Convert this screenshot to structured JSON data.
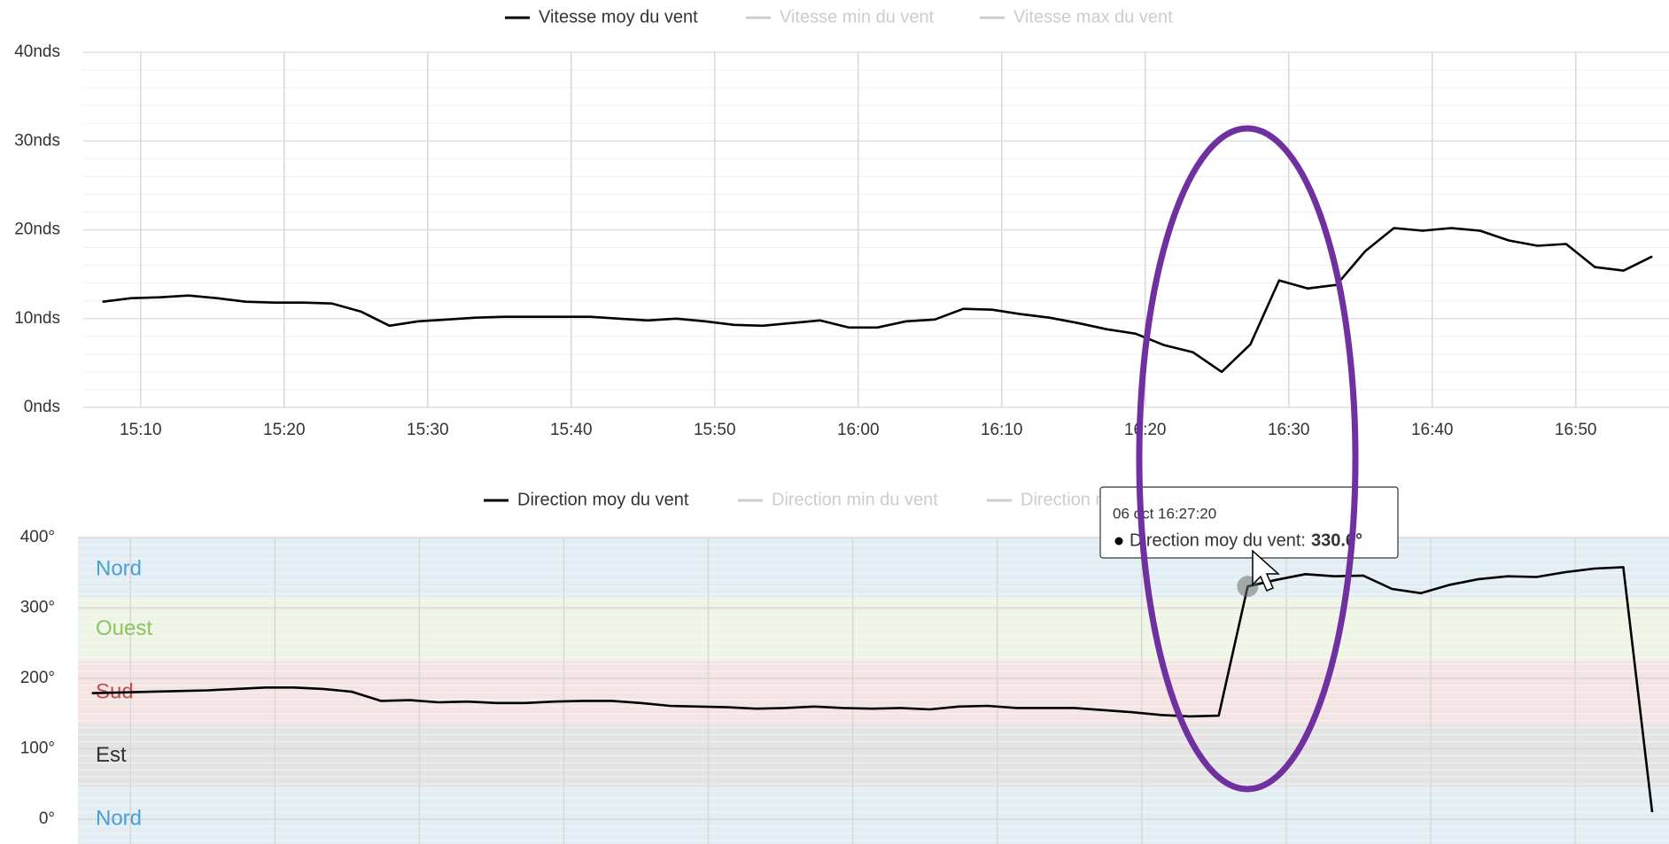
{
  "chart_data": [
    {
      "type": "line",
      "x": [
        "15:07:20",
        "15:09:20",
        "15:11:20",
        "15:13:20",
        "15:15:20",
        "15:17:20",
        "15:19:20",
        "15:21:20",
        "15:23:20",
        "15:25:20",
        "15:27:20",
        "15:29:20",
        "15:31:20",
        "15:33:20",
        "15:35:20",
        "15:37:20",
        "15:39:20",
        "15:41:20",
        "15:43:20",
        "15:45:20",
        "15:47:20",
        "15:49:20",
        "15:51:20",
        "15:53:20",
        "15:55:20",
        "15:57:20",
        "15:59:20",
        "16:01:20",
        "16:03:20",
        "16:05:20",
        "16:07:20",
        "16:09:20",
        "16:11:20",
        "16:13:20",
        "16:15:20",
        "16:17:20",
        "16:19:20",
        "16:21:20",
        "16:23:20",
        "16:25:20",
        "16:27:20",
        "16:29:20",
        "16:31:20",
        "16:33:20",
        "16:35:20",
        "16:37:20",
        "16:39:20",
        "16:41:20",
        "16:43:20",
        "16:45:20",
        "16:47:20",
        "16:49:20",
        "16:51:20",
        "16:53:20",
        "16:55:20"
      ],
      "series": [
        {
          "name": "Vitesse moy du vent",
          "color": "#000000",
          "visible": true,
          "values": [
            11.9,
            12.3,
            12.4,
            12.6,
            12.3,
            11.9,
            11.8,
            11.8,
            11.7,
            10.8,
            9.2,
            9.7,
            9.9,
            10.1,
            10.2,
            10.2,
            10.2,
            10.2,
            10.0,
            9.8,
            10.0,
            9.7,
            9.3,
            9.2,
            9.5,
            9.8,
            9.0,
            9.0,
            9.7,
            9.9,
            11.1,
            11.0,
            10.5,
            10.1,
            9.5,
            8.8,
            8.3,
            7.0,
            6.2,
            4.0,
            7.1,
            14.3,
            13.4,
            13.8,
            17.6,
            20.2,
            19.9,
            20.2,
            19.9,
            18.8,
            18.2,
            18.4,
            15.8,
            15.4,
            17.0
          ]
        },
        {
          "name": "Vitesse min du vent",
          "color": "#cccccc",
          "visible": false
        },
        {
          "name": "Vitesse max du vent",
          "color": "#cccccc",
          "visible": false
        }
      ],
      "xlim": [
        "15:06:00",
        "16:56:30"
      ],
      "xticks": [
        "15:10",
        "15:20",
        "15:30",
        "15:40",
        "15:50",
        "16:00",
        "16:10",
        "16:20",
        "16:30",
        "16:40",
        "16:50"
      ],
      "ylim": [
        0,
        40
      ],
      "yticks": [
        {
          "value": 0,
          "label": "0nds"
        },
        {
          "value": 10,
          "label": "10nds"
        },
        {
          "value": 20,
          "label": "20nds"
        },
        {
          "value": 30,
          "label": "30nds"
        },
        {
          "value": 40,
          "label": "40nds"
        }
      ],
      "grid": true,
      "legend": "top"
    },
    {
      "type": "line",
      "series": [
        {
          "name": "Direction moy du vent",
          "color": "#000000",
          "visible": true,
          "values": [
            179,
            180,
            181,
            182,
            183,
            185,
            187,
            187,
            185,
            181,
            168,
            169,
            166,
            167,
            165,
            165,
            167,
            168,
            168,
            165,
            161,
            160,
            159,
            157,
            158,
            160,
            158,
            157,
            158,
            156,
            160,
            161,
            158,
            158,
            158,
            155,
            152,
            148,
            146,
            147,
            330.6,
            340,
            348,
            345,
            346,
            327,
            321,
            333,
            341,
            345,
            344,
            351,
            356,
            358,
            10
          ]
        },
        {
          "name": "Direction min du vent",
          "color": "#cccccc",
          "visible": false
        },
        {
          "name": "Direction max du vent",
          "color": "#cccccc",
          "visible": false
        }
      ],
      "ylim": [
        0,
        400
      ],
      "yticks": [
        {
          "value": 0,
          "label": "0°"
        },
        {
          "value": 100,
          "label": "100°"
        },
        {
          "value": 200,
          "label": "200°"
        },
        {
          "value": 300,
          "label": "300°"
        },
        {
          "value": 400,
          "label": "400°"
        }
      ],
      "plot_bands": [
        {
          "from": 315,
          "to": 400,
          "label": "Nord",
          "color": "#e3eef4",
          "label_color": "#4a9fd5"
        },
        {
          "from": 225,
          "to": 315,
          "label": "Ouest",
          "color": "#eef4e6",
          "label_color": "#8cc45e"
        },
        {
          "from": 135,
          "to": 225,
          "label": "Sud",
          "color": "#f4e4e4",
          "label_color": "#c0504d"
        },
        {
          "from": 45,
          "to": 135,
          "label": "Est",
          "color": "#e4e4e4",
          "label_color": "#333333"
        },
        {
          "from": 0,
          "to": 45,
          "label": "Nord",
          "color": "#e3eef4",
          "label_color": "#4a9fd5"
        }
      ],
      "grid": true,
      "legend": "top",
      "tooltip": {
        "title": "06 oct 16:27:20",
        "label": "Direction moy du vent:",
        "value_label": "330.6°"
      }
    }
  ]
}
